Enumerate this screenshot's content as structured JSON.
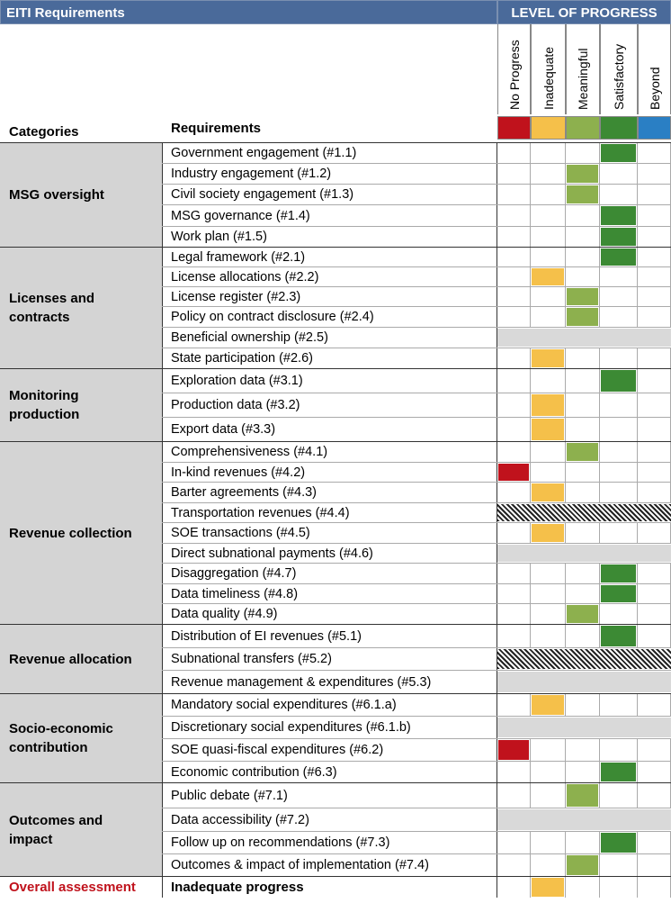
{
  "header": {
    "title": "EITI Requirements",
    "progress_title": "LEVEL OF PROGRESS"
  },
  "levels": [
    {
      "label": "No Progress",
      "color": "#c0121c"
    },
    {
      "label": "Inadequate",
      "color": "#f5c04a"
    },
    {
      "label": "Meaningful",
      "color": "#8db04e"
    },
    {
      "label": "Satisfactory",
      "color": "#3c8a34"
    },
    {
      "label": "Beyond",
      "color": "#2a7fc4"
    }
  ],
  "columns": {
    "categories": "Categories",
    "requirements": "Requirements"
  },
  "categories": [
    {
      "name": "MSG oversight",
      "rows": [
        {
          "req": "Government engagement (#1.1)",
          "level": 3
        },
        {
          "req": "Industry engagement (#1.2)",
          "level": 2
        },
        {
          "req": "Civil society engagement (#1.3)",
          "level": 2
        },
        {
          "req": "MSG governance (#1.4)",
          "level": 3
        },
        {
          "req": "Work plan (#1.5)",
          "level": 3
        }
      ]
    },
    {
      "name": "Licenses and contracts",
      "rows": [
        {
          "req": "Legal framework (#2.1)",
          "level": 3
        },
        {
          "req": "License allocations (#2.2)",
          "level": 1
        },
        {
          "req": "License register (#2.3)",
          "level": 2
        },
        {
          "req": "Policy on contract disclosure (#2.4)",
          "level": 2
        },
        {
          "req": "Beneficial ownership (#2.5)",
          "level": "na"
        },
        {
          "req": "State participation (#2.6)",
          "level": 1
        }
      ]
    },
    {
      "name": "Monitoring production",
      "rows": [
        {
          "req": "Exploration data (#3.1)",
          "level": 3
        },
        {
          "req": "Production data (#3.2)",
          "level": 1
        },
        {
          "req": "Export data (#3.3)",
          "level": 1
        }
      ]
    },
    {
      "name": "Revenue collection",
      "rows": [
        {
          "req": "Comprehensiveness (#4.1)",
          "level": 2
        },
        {
          "req": "In-kind revenues (#4.2)",
          "level": 0
        },
        {
          "req": "Barter agreements (#4.3)",
          "level": 1
        },
        {
          "req": "Transportation revenues (#4.4)",
          "level": "hatch"
        },
        {
          "req": "SOE transactions (#4.5)",
          "level": 1
        },
        {
          "req": "Direct subnational payments (#4.6)",
          "level": "na"
        },
        {
          "req": "Disaggregation (#4.7)",
          "level": 3
        },
        {
          "req": "Data timeliness (#4.8)",
          "level": 3
        },
        {
          "req": "Data quality (#4.9)",
          "level": 2
        }
      ]
    },
    {
      "name": "Revenue allocation",
      "rows": [
        {
          "req": "Distribution of EI revenues (#5.1)",
          "level": 3
        },
        {
          "req": "Subnational transfers (#5.2)",
          "level": "hatch"
        },
        {
          "req": "Revenue management & expenditures (#5.3)",
          "level": "na"
        }
      ]
    },
    {
      "name": "Socio-economic contribution",
      "rows": [
        {
          "req": "Mandatory social expenditures (#6.1.a)",
          "level": 1
        },
        {
          "req": "Discretionary social expenditures (#6.1.b)",
          "level": "na"
        },
        {
          "req": "SOE quasi-fiscal expenditures (#6.2)",
          "level": 0
        },
        {
          "req": "Economic contribution (#6.3)",
          "level": 3
        }
      ]
    },
    {
      "name": "Outcomes and impact",
      "rows": [
        {
          "req": "Public debate (#7.1)",
          "level": 2
        },
        {
          "req": "Data accessibility (#7.2)",
          "level": "na"
        },
        {
          "req": "Follow up on recommendations (#7.3)",
          "level": 3
        },
        {
          "req": "Outcomes & impact of implementation (#7.4)",
          "level": 2
        }
      ]
    }
  ],
  "overall": {
    "label": "Overall assessment",
    "value": "Inadequate progress",
    "level": 1
  }
}
